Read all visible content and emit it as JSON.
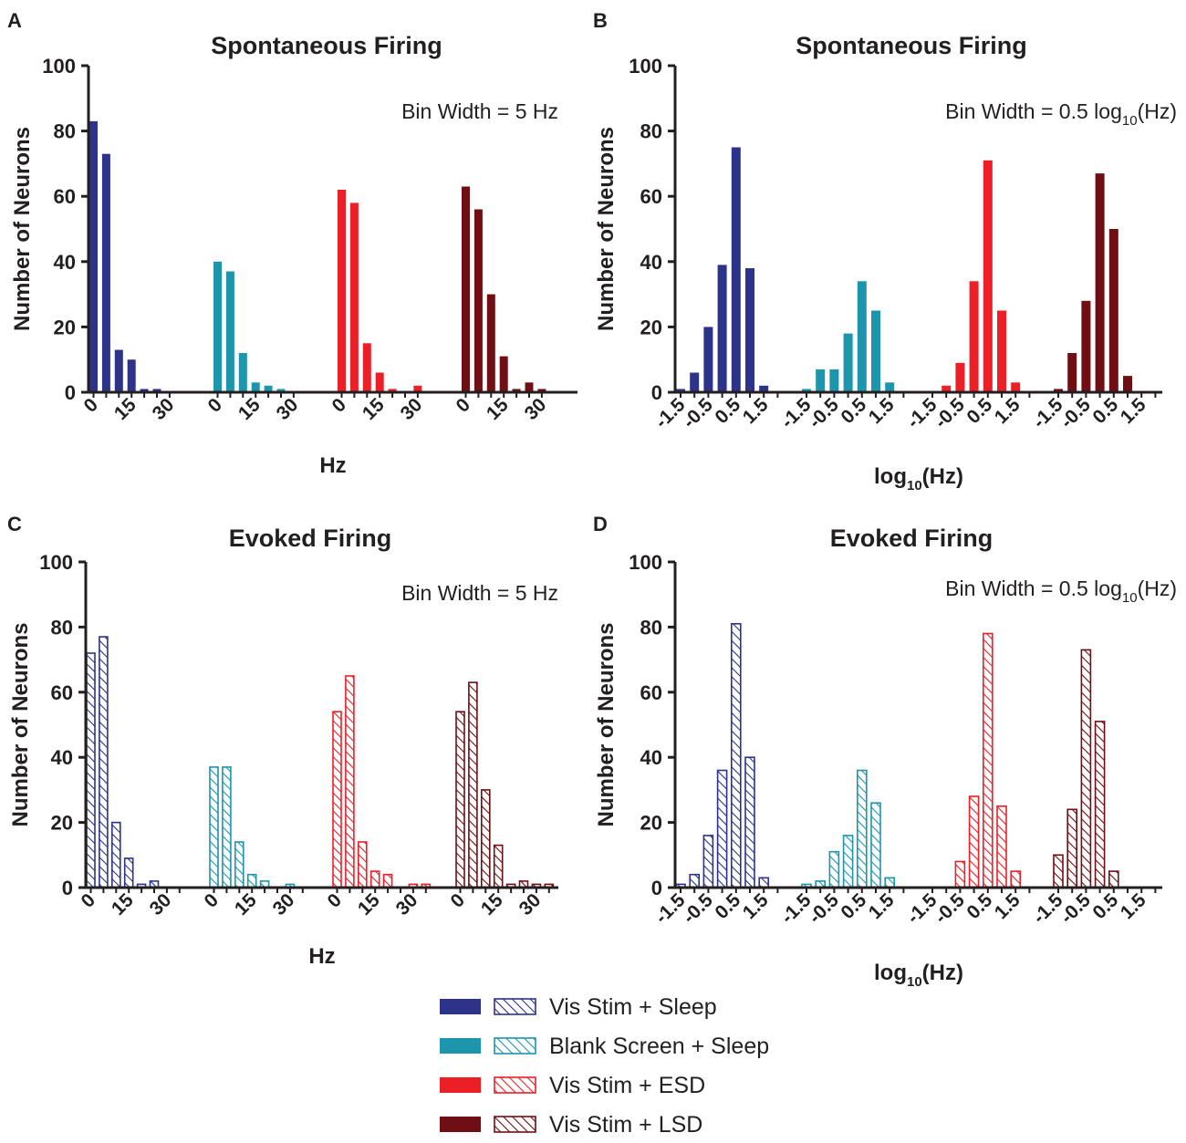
{
  "legend": {
    "items": [
      {
        "label": "Vis Stim + Sleep",
        "color": "#2c3389"
      },
      {
        "label": "Blank Screen + Sleep",
        "color": "#1c95ad"
      },
      {
        "label": "Vis Stim + ESD",
        "color": "#ec1f27"
      },
      {
        "label": "Vis Stim + LSD",
        "color": "#6f0f13"
      }
    ]
  },
  "chart_data": [
    {
      "panel": "A",
      "type": "bar",
      "title": "Spontaneous Firing",
      "ylabel": "Number of Neurons",
      "xlabel": "Hz",
      "xlabel_sub": "",
      "xlabel_tail": "",
      "annotation": {
        "text": "Bin Width = 5 Hz",
        "sub": "",
        "tail": ""
      },
      "ylim": [
        0,
        100
      ],
      "yticks": [
        0,
        20,
        40,
        60,
        80,
        100
      ],
      "fill": "solid",
      "bin_labels": [
        "0",
        "",
        "",
        "15",
        "",
        "",
        "30"
      ],
      "series": [
        {
          "name": "Vis Stim + Sleep",
          "values": [
            83,
            73,
            13,
            10,
            1,
            1,
            0
          ]
        },
        {
          "name": "Blank Screen + Sleep",
          "values": [
            40,
            37,
            12,
            3,
            2,
            1,
            0
          ]
        },
        {
          "name": "Vis Stim + ESD",
          "values": [
            62,
            58,
            15,
            6,
            1,
            0,
            2
          ]
        },
        {
          "name": "Vis Stim + LSD",
          "values": [
            63,
            56,
            30,
            11,
            1,
            3,
            1
          ]
        }
      ]
    },
    {
      "panel": "B",
      "type": "bar",
      "title": "Spontaneous Firing",
      "ylabel": "Number of Neurons",
      "xlabel": "log",
      "xlabel_sub": "10",
      "xlabel_tail": "(Hz)",
      "annotation": {
        "text": "Bin Width = 0.5 log",
        "sub": "10",
        "tail": "(Hz)"
      },
      "ylim": [
        0,
        100
      ],
      "yticks": [
        0,
        20,
        40,
        60,
        80,
        100
      ],
      "fill": "solid",
      "bin_labels": [
        "-1.5",
        "",
        "-0.5",
        "",
        "0.5",
        "",
        "1.5",
        ""
      ],
      "series": [
        {
          "name": "Vis Stim + Sleep",
          "values": [
            1,
            6,
            20,
            39,
            75,
            38,
            2,
            0
          ]
        },
        {
          "name": "Blank Screen + Sleep",
          "values": [
            1,
            7,
            7,
            18,
            34,
            25,
            3,
            0
          ]
        },
        {
          "name": "Vis Stim + ESD",
          "values": [
            0,
            2,
            9,
            34,
            71,
            25,
            3,
            0
          ]
        },
        {
          "name": "Vis Stim + LSD",
          "values": [
            1,
            12,
            28,
            67,
            50,
            5,
            0,
            0
          ]
        }
      ]
    },
    {
      "panel": "C",
      "type": "bar",
      "title": "Evoked Firing",
      "ylabel": "Number of Neurons",
      "xlabel": "Hz",
      "xlabel_sub": "",
      "xlabel_tail": "",
      "annotation": {
        "text": "Bin Width = 5 Hz",
        "sub": "",
        "tail": ""
      },
      "ylim": [
        0,
        100
      ],
      "yticks": [
        0,
        20,
        40,
        60,
        80,
        100
      ],
      "fill": "hatched",
      "bin_labels": [
        "0",
        "",
        "",
        "15",
        "",
        "",
        "30",
        ""
      ],
      "series": [
        {
          "name": "Vis Stim + Sleep",
          "values": [
            72,
            77,
            20,
            9,
            1,
            2,
            0,
            0
          ]
        },
        {
          "name": "Blank Screen + Sleep",
          "values": [
            37,
            37,
            14,
            4,
            2,
            0,
            1,
            0
          ]
        },
        {
          "name": "Vis Stim + ESD",
          "values": [
            54,
            65,
            14,
            5,
            4,
            0,
            1,
            1
          ]
        },
        {
          "name": "Vis Stim + LSD",
          "values": [
            54,
            63,
            30,
            13,
            1,
            2,
            1,
            1
          ]
        }
      ]
    },
    {
      "panel": "D",
      "type": "bar",
      "title": "Evoked Firing",
      "ylabel": "Number of Neurons",
      "xlabel": "log",
      "xlabel_sub": "10",
      "xlabel_tail": "(Hz)",
      "annotation": {
        "text": "Bin Width = 0.5 log",
        "sub": "10",
        "tail": "(Hz)"
      },
      "ylim": [
        0,
        100
      ],
      "yticks": [
        0,
        20,
        40,
        60,
        80,
        100
      ],
      "fill": "hatched",
      "bin_labels": [
        "-1.5",
        "",
        "-0.5",
        "",
        "0.5",
        "",
        "1.5",
        ""
      ],
      "series": [
        {
          "name": "Vis Stim + Sleep",
          "values": [
            1,
            4,
            16,
            36,
            81,
            40,
            3,
            0
          ]
        },
        {
          "name": "Blank Screen + Sleep",
          "values": [
            1,
            2,
            11,
            16,
            36,
            26,
            3,
            0
          ]
        },
        {
          "name": "Vis Stim + ESD",
          "values": [
            0,
            0,
            8,
            28,
            78,
            25,
            5,
            0
          ]
        },
        {
          "name": "Vis Stim + LSD",
          "values": [
            10,
            24,
            73,
            51,
            5,
            0,
            0,
            0
          ]
        }
      ]
    }
  ]
}
